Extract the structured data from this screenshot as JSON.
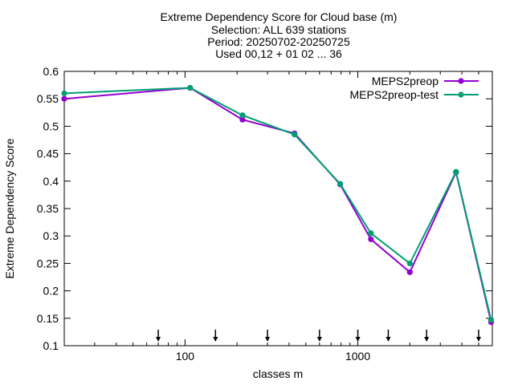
{
  "chart_data": {
    "type": "line",
    "title_lines": [
      "Extreme Dependency Score  for Cloud base (m)",
      "Selection: ALL    639 stations",
      "Period: 20250702-20250725",
      "Used 00,12 + 01 02 ... 36"
    ],
    "xlabel": "classes m",
    "ylabel": "Extreme Dependency Score",
    "x_scale": "log",
    "xlim": [
      20,
      6000
    ],
    "ylim": [
      0.1,
      0.6
    ],
    "x_ticks": [
      100,
      1000
    ],
    "x_tick_labels": [
      "100",
      "1000"
    ],
    "y_ticks": [
      0.1,
      0.15,
      0.2,
      0.25,
      0.3,
      0.35,
      0.4,
      0.45,
      0.5,
      0.55,
      0.6
    ],
    "y_tick_labels": [
      "0.1",
      "0.15",
      "0.2",
      "0.25",
      "0.3",
      "0.35",
      "0.4",
      "0.45",
      "0.5",
      "0.55",
      "0.6"
    ],
    "legend_position": "top-right",
    "grid": false,
    "x": [
      20,
      107,
      215,
      430,
      790,
      1190,
      2000,
      3700,
      5900
    ],
    "series": [
      {
        "name": "MEPS2preop",
        "color": "#9400d3",
        "values": [
          0.55,
          0.57,
          0.512,
          0.487,
          0.394,
          0.294,
          0.234,
          0.416,
          0.143
        ]
      },
      {
        "name": "MEPS2preop-test",
        "color": "#009e73",
        "values": [
          0.56,
          0.57,
          0.52,
          0.485,
          0.395,
          0.305,
          0.25,
          0.417,
          0.147
        ]
      }
    ],
    "arrow_markers_x": [
      70,
      150,
      300,
      600,
      1000,
      1500,
      2500,
      5000
    ]
  }
}
